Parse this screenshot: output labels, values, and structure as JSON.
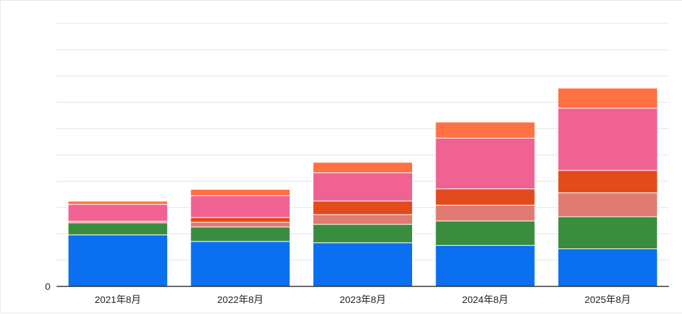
{
  "chart_data": {
    "type": "bar",
    "stacked": true,
    "categories": [
      "2021年8月",
      "2022年8月",
      "2023年8月",
      "2024年8月",
      "2025年8月"
    ],
    "y_tick_labels": [
      "0"
    ],
    "ylim": [
      0,
      100
    ],
    "grid": true,
    "legend": "none",
    "series": [
      {
        "color": "#0a6ff0",
        "values": [
          19.6,
          17.1,
          16.6,
          15.6,
          14.3
        ]
      },
      {
        "color": "#3a8c3f",
        "values": [
          4.6,
          5.5,
          7.0,
          9.3,
          12.2
        ]
      },
      {
        "color": "#e07a73",
        "values": [
          0.6,
          1.8,
          3.7,
          6.0,
          9.1
        ]
      },
      {
        "color": "#e34a1c",
        "values": [
          0,
          1.8,
          5.2,
          6.2,
          8.5
        ]
      },
      {
        "color": "#f06292",
        "values": [
          6.4,
          8.3,
          10.7,
          19.3,
          23.7
        ]
      },
      {
        "color": "#ff7043",
        "values": [
          1.2,
          2.4,
          4.0,
          6.1,
          7.6
        ]
      }
    ]
  }
}
